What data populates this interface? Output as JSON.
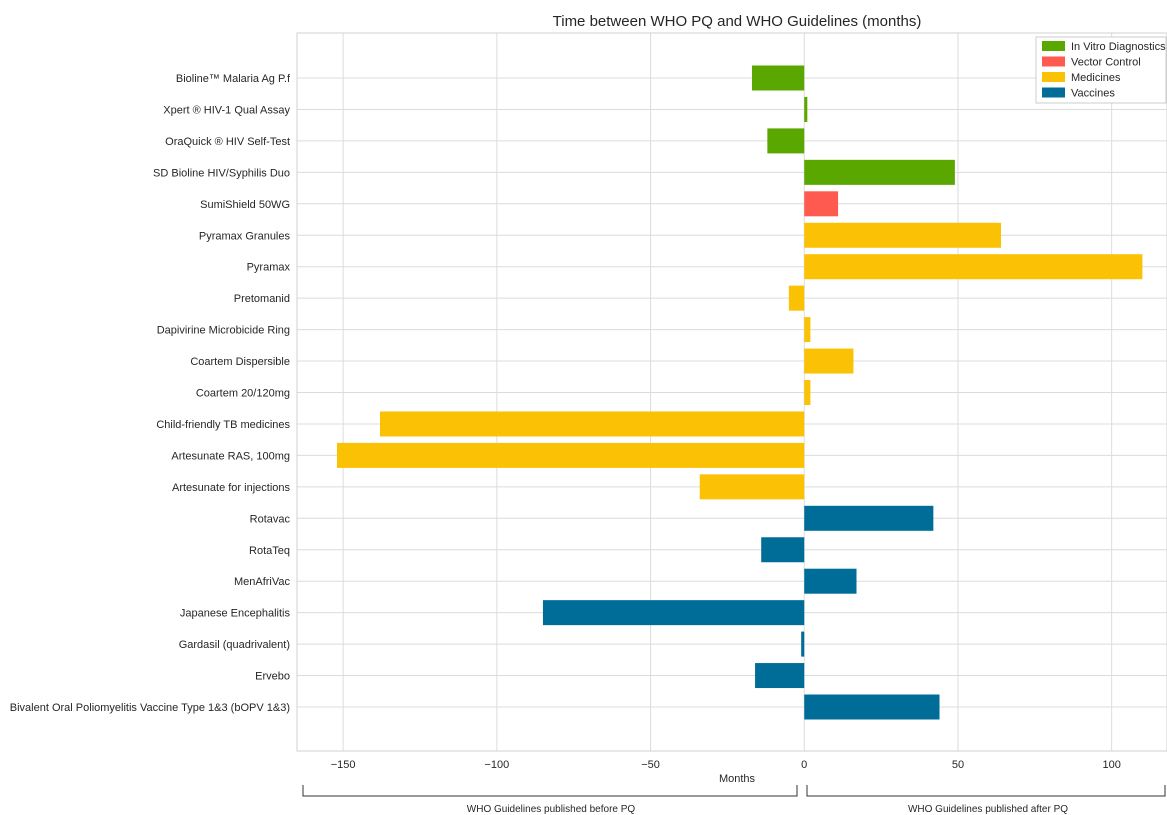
{
  "chart_data": {
    "type": "bar",
    "orientation": "horizontal",
    "title": "Time between WHO PQ and WHO Guidelines (months)",
    "xlabel": "Months",
    "xlim": [
      -165,
      118
    ],
    "xticks": [
      -150,
      -100,
      -50,
      0,
      50,
      100
    ],
    "xtick_labels": [
      "−150",
      "−100",
      "−50",
      "0",
      "50",
      "100"
    ],
    "grid": true,
    "legend_position": "top-right",
    "categories": [
      "Bioline™ Malaria Ag P.f",
      "Xpert ® HIV-1 Qual Assay",
      "OraQuick ® HIV Self-Test",
      "SD Bioline HIV/Syphilis Duo",
      "SumiShield 50WG",
      "Pyramax Granules",
      "Pyramax",
      "Pretomanid",
      "Dapivirine Microbicide Ring",
      "Coartem Dispersible",
      "Coartem 20/120mg",
      "Child-friendly TB medicines",
      "Artesunate RAS, 100mg",
      "Artesunate for injections",
      "Rotavac",
      "RotaTeq",
      "MenAfriVac",
      "Japanese Encephalitis",
      "Gardasil (quadrivalent)",
      "Ervebo",
      "Bivalent Oral Poliomyelitis Vaccine Type 1&3 (bOPV 1&3)"
    ],
    "values": [
      -17,
      1,
      -12,
      49,
      11,
      64,
      110,
      -5,
      2,
      16,
      2,
      -138,
      -152,
      -34,
      42,
      -14,
      17,
      -85,
      -1,
      -16,
      44
    ],
    "groups": [
      "In Vitro Diagnostics",
      "In Vitro Diagnostics",
      "In Vitro Diagnostics",
      "In Vitro Diagnostics",
      "Vector Control",
      "Medicines",
      "Medicines",
      "Medicines",
      "Medicines",
      "Medicines",
      "Medicines",
      "Medicines",
      "Medicines",
      "Medicines",
      "Vaccines",
      "Vaccines",
      "Vaccines",
      "Vaccines",
      "Vaccines",
      "Vaccines",
      "Vaccines"
    ],
    "legend": [
      {
        "name": "In Vitro Diagnostics",
        "color": "#5aa700"
      },
      {
        "name": "Vector Control",
        "color": "#ff5a50"
      },
      {
        "name": "Medicines",
        "color": "#fbc105"
      },
      {
        "name": "Vaccines",
        "color": "#006d99"
      }
    ],
    "annotations": {
      "left": "WHO Guidelines published before PQ",
      "right": "WHO Guidelines published after PQ"
    }
  }
}
